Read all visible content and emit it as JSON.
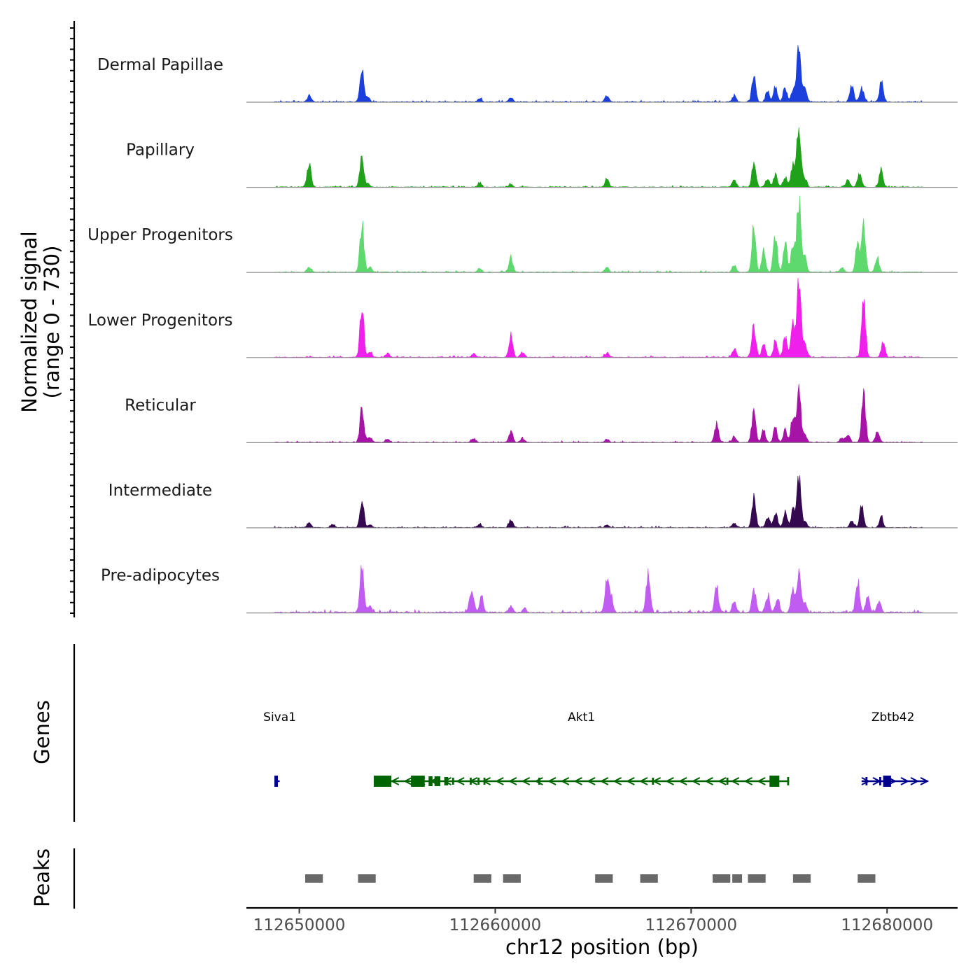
{
  "chart_data": {
    "type": "area",
    "title": "",
    "chromosome": "chr12",
    "xlabel": "chr12 position (bp)",
    "ylabel_line1": "Normalized signal",
    "ylabel_line2": "(range 0 - 730)",
    "ylim": [
      0,
      730
    ],
    "xlim": [
      112647300,
      112683600
    ],
    "x_ticks": [
      112650000,
      112660000,
      112670000,
      112680000
    ],
    "x_tick_labels": [
      "112650000",
      "112660000",
      "112670000",
      "112680000"
    ],
    "baseline_color": "#8c8c8c",
    "signal_start": 112648700,
    "signal_end": 112681800,
    "tracks": [
      {
        "name": "Dermal Papillae",
        "color": "#1a3fdc",
        "noise": 12,
        "peaks": [
          [
            112650500,
            90
          ],
          [
            112653200,
            520
          ],
          [
            112653500,
            60
          ],
          [
            112659200,
            50
          ],
          [
            112660800,
            70
          ],
          [
            112665700,
            90
          ],
          [
            112672200,
            90
          ],
          [
            112673200,
            340
          ],
          [
            112673900,
            160
          ],
          [
            112674300,
            200
          ],
          [
            112674800,
            190
          ],
          [
            112675200,
            170
          ],
          [
            112675500,
            800
          ],
          [
            112675800,
            200
          ],
          [
            112678200,
            250
          ],
          [
            112678700,
            220
          ],
          [
            112679700,
            280
          ]
        ]
      },
      {
        "name": "Papillary",
        "color": "#1fa21a",
        "noise": 10,
        "peaks": [
          [
            112650500,
            380
          ],
          [
            112653200,
            460
          ],
          [
            112653500,
            40
          ],
          [
            112659200,
            60
          ],
          [
            112660800,
            40
          ],
          [
            112665700,
            130
          ],
          [
            112672200,
            110
          ],
          [
            112673200,
            340
          ],
          [
            112673900,
            130
          ],
          [
            112674300,
            180
          ],
          [
            112674800,
            150
          ],
          [
            112675200,
            350
          ],
          [
            112675500,
            880
          ],
          [
            112675800,
            140
          ],
          [
            112678000,
            100
          ],
          [
            112678600,
            220
          ],
          [
            112679700,
            240
          ]
        ]
      },
      {
        "name": "Upper Progenitors",
        "color": "#5ed96e",
        "noise": 11,
        "peaks": [
          [
            112650500,
            80
          ],
          [
            112653200,
            720
          ],
          [
            112653600,
            80
          ],
          [
            112659200,
            60
          ],
          [
            112660800,
            220
          ],
          [
            112665700,
            70
          ],
          [
            112672200,
            90
          ],
          [
            112673200,
            620
          ],
          [
            112673700,
            300
          ],
          [
            112674300,
            550
          ],
          [
            112674800,
            400
          ],
          [
            112675200,
            430
          ],
          [
            112675500,
            1100
          ],
          [
            112675800,
            200
          ],
          [
            112677700,
            70
          ],
          [
            112678500,
            420
          ],
          [
            112678800,
            660
          ],
          [
            112679500,
            200
          ]
        ]
      },
      {
        "name": "Lower Progenitors",
        "color": "#f020ec",
        "noise": 12,
        "peaks": [
          [
            112653200,
            700
          ],
          [
            112653600,
            90
          ],
          [
            112654500,
            60
          ],
          [
            112658900,
            60
          ],
          [
            112660800,
            300
          ],
          [
            112661400,
            80
          ],
          [
            112665700,
            60
          ],
          [
            112672200,
            120
          ],
          [
            112673200,
            450
          ],
          [
            112673700,
            200
          ],
          [
            112674300,
            230
          ],
          [
            112674800,
            300
          ],
          [
            112675200,
            480
          ],
          [
            112675500,
            1150
          ],
          [
            112675800,
            200
          ],
          [
            112678800,
            830
          ],
          [
            112679800,
            200
          ]
        ]
      },
      {
        "name": "Reticular",
        "color": "#a712a7",
        "noise": 12,
        "peaks": [
          [
            112653200,
            520
          ],
          [
            112653600,
            80
          ],
          [
            112654500,
            50
          ],
          [
            112658900,
            60
          ],
          [
            112660800,
            150
          ],
          [
            112661400,
            60
          ],
          [
            112665700,
            50
          ],
          [
            112671300,
            260
          ],
          [
            112672200,
            90
          ],
          [
            112673200,
            450
          ],
          [
            112673700,
            170
          ],
          [
            112674300,
            210
          ],
          [
            112674800,
            180
          ],
          [
            112675200,
            380
          ],
          [
            112675500,
            720
          ],
          [
            112675800,
            120
          ],
          [
            112677700,
            60
          ],
          [
            112678000,
            120
          ],
          [
            112678800,
            740
          ],
          [
            112679500,
            150
          ]
        ]
      },
      {
        "name": "Intermediate",
        "color": "#35094f",
        "noise": 10,
        "peaks": [
          [
            112650500,
            70
          ],
          [
            112651700,
            50
          ],
          [
            112653200,
            370
          ],
          [
            112653600,
            40
          ],
          [
            112659200,
            50
          ],
          [
            112660800,
            110
          ],
          [
            112665700,
            40
          ],
          [
            112672200,
            70
          ],
          [
            112673200,
            450
          ],
          [
            112673900,
            160
          ],
          [
            112674300,
            220
          ],
          [
            112674800,
            230
          ],
          [
            112675200,
            260
          ],
          [
            112675500,
            730
          ],
          [
            112675800,
            80
          ],
          [
            112678200,
            100
          ],
          [
            112678700,
            290
          ],
          [
            112679700,
            150
          ]
        ]
      },
      {
        "name": "Pre-adipocytes",
        "color": "#c05cf2",
        "noise": 20,
        "peaks": [
          [
            112653200,
            660
          ],
          [
            112653600,
            90
          ],
          [
            112658800,
            380
          ],
          [
            112659300,
            220
          ],
          [
            112660800,
            100
          ],
          [
            112661500,
            60
          ],
          [
            112665700,
            480
          ],
          [
            112665900,
            200
          ],
          [
            112667800,
            580
          ],
          [
            112671300,
            360
          ],
          [
            112672200,
            180
          ],
          [
            112673200,
            350
          ],
          [
            112673900,
            260
          ],
          [
            112674400,
            230
          ],
          [
            112675200,
            320
          ],
          [
            112675500,
            650
          ],
          [
            112675800,
            120
          ],
          [
            112678500,
            460
          ],
          [
            112679000,
            220
          ],
          [
            112679600,
            150
          ]
        ]
      }
    ],
    "genes_track_label": "Genes",
    "genes": [
      {
        "name": "Siva1",
        "start": 112648800,
        "end": 112649000,
        "strand": "+",
        "color": "#00008b",
        "label_x": 112649000
      },
      {
        "name": "Akt1",
        "start": 112653800,
        "end": 112675000,
        "strand": "-",
        "color": "#006400",
        "label_x": 112664400
      },
      {
        "name": "Zbtb42",
        "start": 112678700,
        "end": 112682000,
        "strand": "+",
        "color": "#00008b",
        "label_x": 112680300
      }
    ],
    "peaks_track_label": "Peaks",
    "peak_color": "#696969",
    "peak_regions": [
      [
        112650300,
        112651200
      ],
      [
        112653000,
        112653900
      ],
      [
        112658900,
        112659800
      ],
      [
        112660400,
        112661300
      ],
      [
        112665100,
        112666000
      ],
      [
        112667400,
        112668300
      ],
      [
        112671100,
        112672000
      ],
      [
        112672100,
        112672600
      ],
      [
        112672900,
        112673800
      ],
      [
        112675200,
        112676100
      ],
      [
        112678500,
        112679400
      ]
    ]
  }
}
